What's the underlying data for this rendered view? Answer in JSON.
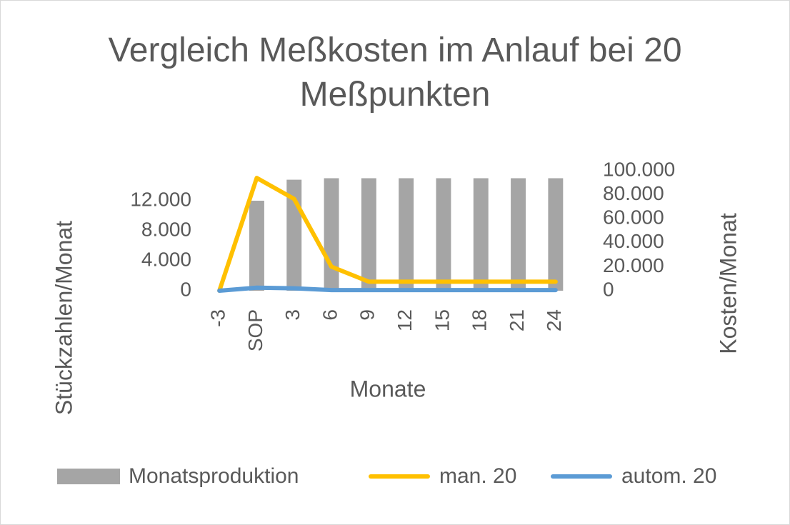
{
  "chart_data": {
    "type": "bar_line",
    "title": "Vergleich Meßkosten im Anlauf bei 20 Meßpunkten",
    "x_label": "Monate",
    "y_label": "Stückzahlen/Monat",
    "y2_label": "Kosten/Monat",
    "categories": [
      "-3",
      "SOP",
      "3",
      "6",
      "9",
      "12",
      "15",
      "18",
      "21",
      "24"
    ],
    "series": [
      {
        "name": "Monatsproduktion",
        "type": "bar",
        "color": "#a5a5a5",
        "values": [
          0,
          12000,
          14800,
          15000,
          15000,
          15000,
          15000,
          15000,
          15000,
          15000
        ]
      },
      {
        "name": "man. 20",
        "type": "line",
        "axis": "y2",
        "color": "#ffc000",
        "values": [
          0,
          94000,
          76500,
          20000,
          7500,
          7500,
          7500,
          7500,
          7500,
          7500
        ]
      },
      {
        "name": "autom. 20",
        "type": "line",
        "axis": "y2",
        "color": "#5b9bd5",
        "values": [
          0,
          2500,
          2000,
          500,
          500,
          500,
          500,
          500,
          500,
          500
        ]
      }
    ],
    "ylim": [
      0,
      16000
    ],
    "yticks": [
      0,
      {
        "value": 4000,
        "label": "4.000"
      },
      {
        "value": 8000,
        "label": "8.000"
      },
      {
        "value": 12000,
        "label": "12.000"
      }
    ],
    "y2lim": [
      0,
      100000
    ],
    "y2ticks": [
      0,
      {
        "value": 20000,
        "label": "20.000"
      },
      {
        "value": 40000,
        "label": "40.000"
      },
      {
        "value": 60000,
        "label": "60.000"
      },
      {
        "value": 80000,
        "label": "80.000"
      },
      {
        "value": 100000,
        "label": "100.000"
      }
    ],
    "legend": "bottom"
  }
}
